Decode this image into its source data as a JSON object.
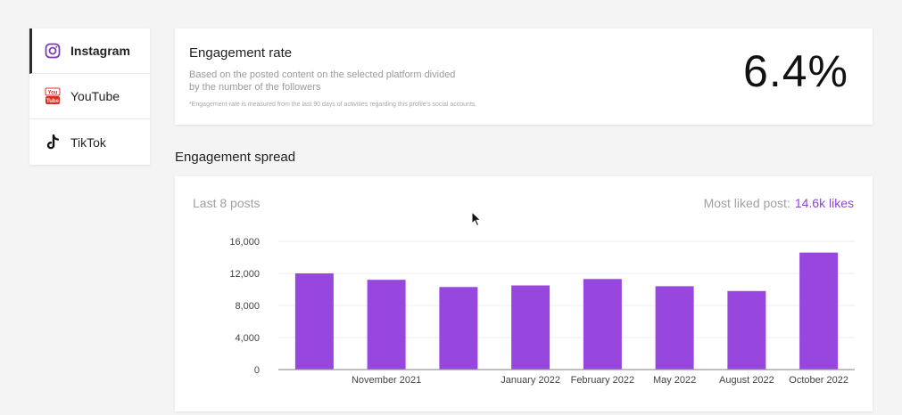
{
  "sidebar": {
    "items": [
      {
        "label": "Instagram",
        "icon": "instagram-icon",
        "active": true
      },
      {
        "label": "YouTube",
        "icon": "youtube-icon",
        "active": false
      },
      {
        "label": "TikTok",
        "icon": "tiktok-icon",
        "active": false
      }
    ]
  },
  "engagement": {
    "title": "Engagement rate",
    "description": "Based on the posted content on the selected platform divided by the number of the followers",
    "note": "*Engagement-rate is measured from the last 90 days of activities regarding this profile's social accounts.",
    "value": "6.4%"
  },
  "spread": {
    "title": "Engagement spread",
    "posts_label": "Last 8 posts",
    "most_liked_label": "Most liked post:",
    "most_liked_value": "14.6k likes"
  },
  "colors": {
    "accent": "#8e44d6",
    "bar": "#9747de"
  },
  "chart_data": {
    "type": "bar",
    "categories": [
      "",
      "November 2021",
      "",
      "January 2022",
      "February 2022",
      "May 2022",
      "August 2022",
      "October 2022"
    ],
    "values": [
      12000,
      11200,
      10300,
      10500,
      11300,
      10400,
      9800,
      14600
    ],
    "yticks": [
      0,
      4000,
      8000,
      12000,
      16000
    ],
    "ytick_labels": [
      "0",
      "4,000",
      "8,000",
      "12,000",
      "16,000"
    ],
    "ylim": [
      0,
      16000
    ],
    "grid": true
  }
}
